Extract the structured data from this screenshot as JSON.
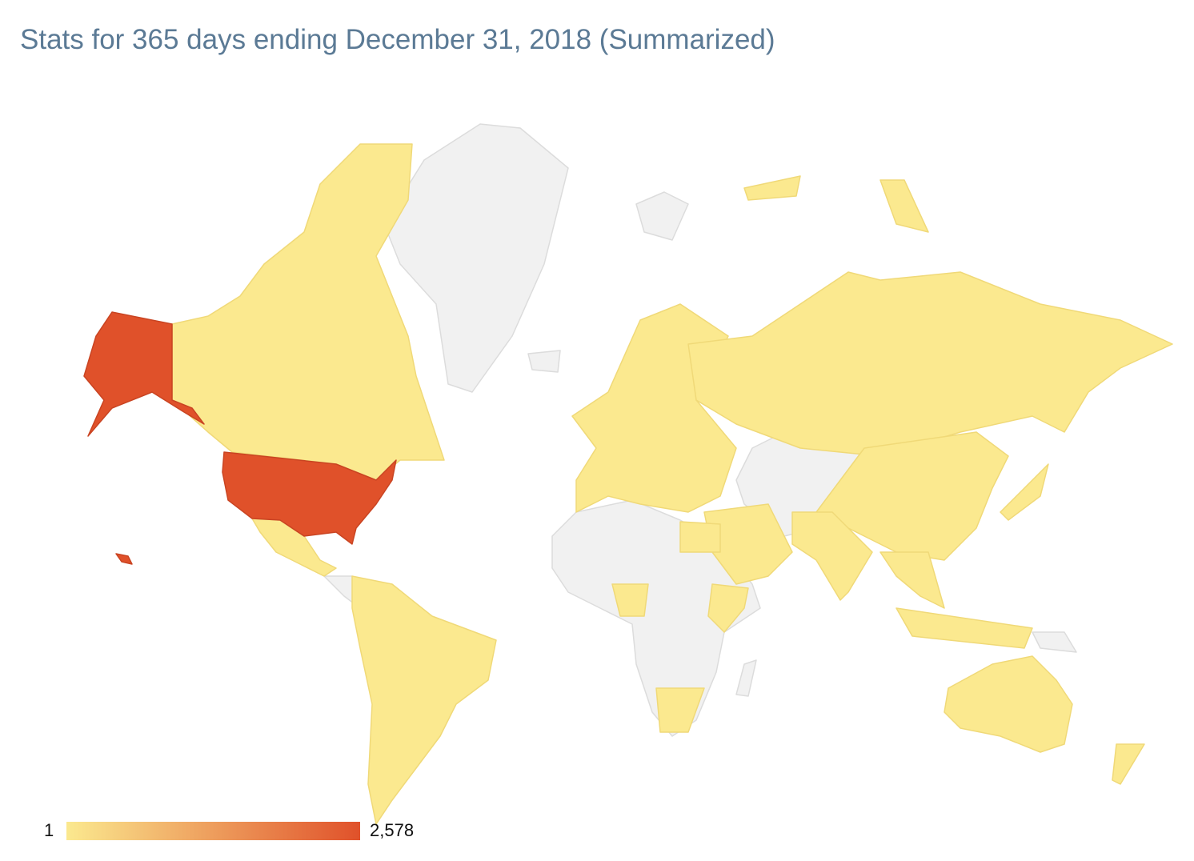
{
  "title": "Stats for 365 days ending December 31, 2018 (Summarized)",
  "legend": {
    "min": 1,
    "max": {
      "value": 2578,
      "label": "2,578"
    },
    "colors": [
      "#fbe98f",
      "#e0512a"
    ],
    "no_data_color": "#f1f1f1"
  }
}
